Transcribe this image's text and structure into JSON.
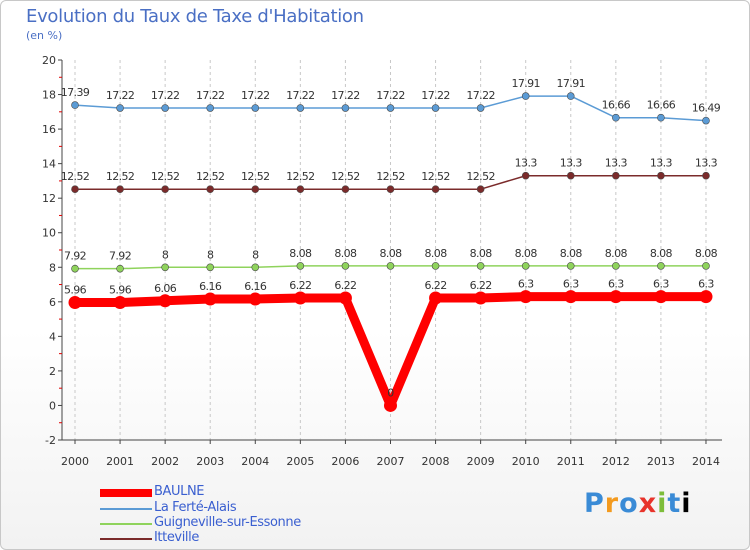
{
  "chart_data": {
    "type": "line",
    "title": "Evolution du Taux de Taxe d'Habitation",
    "ylabel": "(en %)",
    "xlabel": "",
    "x": [
      "2000",
      "2001",
      "2002",
      "2003",
      "2004",
      "2005",
      "2006",
      "2007",
      "2008",
      "2009",
      "2010",
      "2011",
      "2012",
      "2013",
      "2014"
    ],
    "ylim": [
      -2,
      20
    ],
    "yticks": [
      -2,
      0,
      2,
      4,
      6,
      8,
      10,
      12,
      14,
      16,
      18,
      20
    ],
    "ytick_labels": [
      "-2",
      "0",
      "2",
      "4",
      "6",
      "8",
      "10",
      "12",
      "14",
      "16",
      "18",
      "20"
    ],
    "grid": "vertical dashed",
    "legend_position": "bottom-left",
    "series": [
      {
        "name": "BAULNE",
        "color": "#ff0000",
        "emphasis": "thick",
        "values": [
          5.96,
          5.96,
          6.06,
          6.16,
          6.16,
          6.22,
          6.22,
          0,
          6.22,
          6.22,
          6.3,
          6.3,
          6.3,
          6.3,
          6.3
        ],
        "labels": [
          "5.96",
          "5.96",
          "6.06",
          "6.16",
          "6.16",
          "6.22",
          "6.22",
          "0",
          "6.22",
          "6.22",
          "6.3",
          "6.3",
          "6.3",
          "6.3",
          "6.3"
        ]
      },
      {
        "name": "La Ferté-Alais",
        "color": "#5b9bd5",
        "emphasis": "thin",
        "values": [
          17.39,
          17.22,
          17.22,
          17.22,
          17.22,
          17.22,
          17.22,
          17.22,
          17.22,
          17.22,
          17.91,
          17.91,
          16.66,
          16.66,
          16.49
        ],
        "labels": [
          "17.39",
          "17.22",
          "17.22",
          "17.22",
          "17.22",
          "17.22",
          "17.22",
          "17.22",
          "17.22",
          "17.22",
          "17.91",
          "17.91",
          "16.66",
          "16.66",
          "16.49"
        ]
      },
      {
        "name": "Guigneville-sur-Essonne",
        "color": "#8fd35c",
        "emphasis": "thin",
        "values": [
          7.92,
          7.92,
          8,
          8,
          8,
          8.08,
          8.08,
          8.08,
          8.08,
          8.08,
          8.08,
          8.08,
          8.08,
          8.08,
          8.08
        ],
        "labels": [
          "7.92",
          "7.92",
          "8",
          "8",
          "8",
          "8.08",
          "8.08",
          "8.08",
          "8.08",
          "8.08",
          "8.08",
          "8.08",
          "8.08",
          "8.08",
          "8.08"
        ]
      },
      {
        "name": "Itteville",
        "color": "#7b2b2b",
        "emphasis": "thin",
        "values": [
          12.52,
          12.52,
          12.52,
          12.52,
          12.52,
          12.52,
          12.52,
          12.52,
          12.52,
          12.52,
          13.3,
          13.3,
          13.3,
          13.3,
          13.3
        ],
        "labels": [
          "12.52",
          "12.52",
          "12.52",
          "12.52",
          "12.52",
          "12.52",
          "12.52",
          "12.52",
          "12.52",
          "12.52",
          "13.3",
          "13.3",
          "13.3",
          "13.3",
          "13.3"
        ]
      }
    ]
  },
  "brand": {
    "letters": [
      "P",
      "r",
      "o",
      "x",
      "i",
      "t",
      "i"
    ]
  }
}
